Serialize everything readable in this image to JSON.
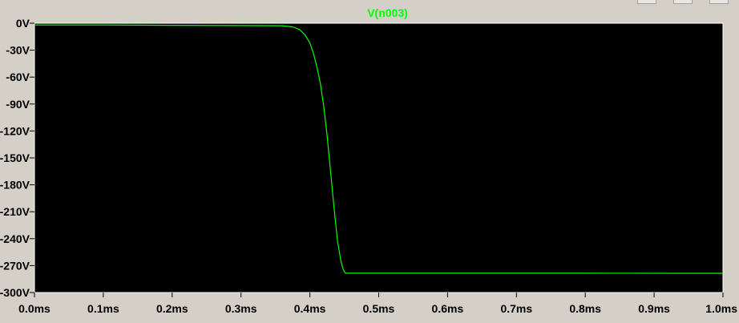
{
  "colors": {
    "background": "#d4d0c8",
    "plot_background": "#000000",
    "trace": "#00ff00",
    "plot_border": "#ffffff"
  },
  "chart_data": {
    "type": "line",
    "title": "V(n003)",
    "xlabel": "",
    "ylabel": "",
    "x_unit": "ms",
    "y_unit": "V",
    "xlim": [
      0.0,
      1.0
    ],
    "ylim": [
      -300,
      0
    ],
    "x_ticks": [
      "0.0ms",
      "0.1ms",
      "0.2ms",
      "0.3ms",
      "0.4ms",
      "0.5ms",
      "0.6ms",
      "0.7ms",
      "0.8ms",
      "0.9ms",
      "1.0ms"
    ],
    "x_tick_values": [
      0.0,
      0.1,
      0.2,
      0.3,
      0.4,
      0.5,
      0.6,
      0.7,
      0.8,
      0.9,
      1.0
    ],
    "y_ticks": [
      "0V",
      "-30V",
      "-60V",
      "-90V",
      "-120V",
      "-150V",
      "-180V",
      "-210V",
      "-240V",
      "-270V",
      "-300V"
    ],
    "y_tick_values": [
      0,
      -30,
      -60,
      -90,
      -120,
      -150,
      -180,
      -210,
      -240,
      -270,
      -300
    ],
    "grid": false,
    "series": [
      {
        "name": "V(n003)",
        "x": [
          0.0,
          0.1,
          0.2,
          0.3,
          0.36,
          0.375,
          0.385,
          0.393,
          0.4,
          0.405,
          0.41,
          0.415,
          0.42,
          0.425,
          0.43,
          0.435,
          0.44,
          0.445,
          0.448,
          0.45,
          0.452,
          0.46,
          0.6,
          0.8,
          1.0
        ],
        "values": [
          -2,
          -2,
          -2.3,
          -2.6,
          -2.8,
          -4,
          -7,
          -13,
          -22,
          -33,
          -48,
          -66,
          -92,
          -125,
          -165,
          -205,
          -242,
          -265,
          -273,
          -277,
          -278.5,
          -278.5,
          -278.5,
          -278.5,
          -278.6
        ]
      }
    ]
  }
}
